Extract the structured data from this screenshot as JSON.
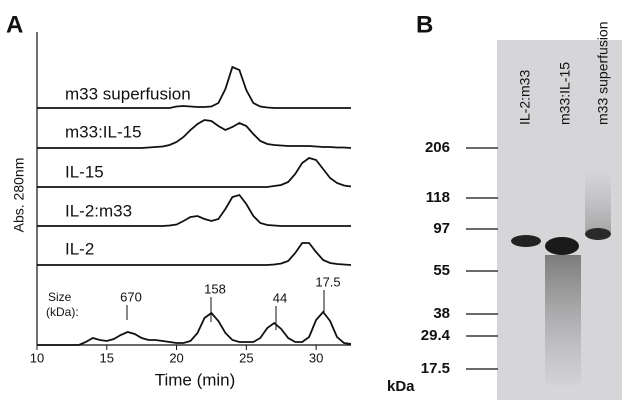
{
  "panels": {
    "a": "A",
    "b": "B"
  },
  "chart_data": {
    "type": "line",
    "x_label": "Time (min)",
    "y_label": "Abs. 280nm",
    "xlim": [
      10,
      32.5
    ],
    "xticks": [
      10,
      15,
      20,
      25,
      30
    ],
    "x": [
      10,
      10.5,
      11,
      11.5,
      12,
      12.5,
      13,
      13.5,
      14,
      14.5,
      15,
      15.5,
      16,
      16.5,
      17,
      17.5,
      18,
      18.5,
      19,
      19.5,
      20,
      20.5,
      21,
      21.5,
      22,
      22.5,
      23,
      23.5,
      24,
      24.5,
      25,
      25.5,
      26,
      26.5,
      27,
      27.5,
      28,
      28.5,
      29,
      29.5,
      30,
      30.5,
      31,
      31.5,
      32,
      32.5
    ],
    "series": [
      {
        "name": "m33 superfusion",
        "color": "#111111",
        "values": [
          0,
          0,
          0,
          0,
          0,
          0,
          0,
          0,
          0,
          0,
          0,
          0,
          0,
          0,
          0,
          0,
          0,
          0,
          0,
          0,
          1.5,
          2,
          1.5,
          1,
          1,
          1.5,
          5,
          19,
          41,
          38,
          18,
          5,
          1.5,
          0.5,
          0,
          0,
          0,
          0,
          0,
          0,
          0,
          0,
          0,
          0,
          0,
          0
        ]
      },
      {
        "name": "m33:IL-15",
        "color": "#111111",
        "values": [
          0,
          0,
          0,
          0,
          0,
          0,
          0,
          0,
          0,
          0,
          0,
          0,
          0,
          0,
          0,
          0,
          0.5,
          1,
          1.5,
          3,
          6,
          11,
          18,
          24,
          28,
          27,
          22,
          18,
          21,
          25,
          22,
          14,
          7,
          4,
          3,
          2.5,
          2,
          2,
          2,
          2,
          1.5,
          1,
          1,
          0.5,
          0.5,
          0
        ]
      },
      {
        "name": "IL-15",
        "color": "#111111",
        "values": [
          0,
          0,
          0,
          0,
          0,
          0,
          0,
          0,
          0,
          0,
          0,
          0,
          0,
          0,
          0,
          0,
          0,
          0,
          0,
          0,
          0,
          0,
          0,
          0,
          0,
          0,
          0,
          0,
          0,
          0,
          0,
          0,
          0,
          0,
          1,
          2,
          5,
          13,
          24,
          29,
          27,
          18,
          9,
          4,
          1.5,
          0.5
        ]
      },
      {
        "name": "IL-2:m33",
        "color": "#111111",
        "values": [
          0,
          0,
          0,
          0,
          0,
          0,
          0,
          0,
          0,
          0,
          0,
          0,
          0,
          0,
          0,
          0,
          0,
          0,
          0,
          0.5,
          1.5,
          5,
          9,
          10,
          7,
          5,
          7,
          17,
          29,
          31,
          22,
          10,
          3,
          1,
          0.5,
          0,
          0,
          0,
          0,
          0,
          0,
          0,
          0,
          0,
          0,
          0
        ]
      },
      {
        "name": "IL-2",
        "color": "#111111",
        "values": [
          0,
          0,
          0,
          0,
          0,
          0,
          0,
          0,
          0,
          0,
          0,
          0,
          0,
          0,
          0,
          0,
          0,
          0,
          0,
          0,
          0,
          0,
          0,
          0,
          0,
          0,
          0,
          0,
          0,
          0,
          0,
          0,
          0,
          0,
          0.5,
          1.5,
          4,
          12,
          22,
          22,
          13,
          5,
          2,
          1,
          0.5,
          0
        ]
      },
      {
        "color": "#111111",
        "values": [
          0,
          0,
          0,
          0,
          0,
          0,
          0,
          3,
          7,
          5,
          4,
          6,
          10,
          13,
          11,
          7,
          5,
          5,
          4,
          3,
          2,
          2,
          4,
          12,
          27,
          32,
          24,
          12,
          5,
          3,
          3,
          3,
          7,
          17,
          22,
          16,
          7,
          3,
          3,
          8,
          25,
          33,
          24,
          8,
          2,
          1
        ]
      }
    ],
    "size_label": [
      "Size",
      "(kDa):"
    ],
    "peak_labels": [
      "670",
      "158",
      "44",
      "17.5"
    ]
  },
  "gel": {
    "lanes": [
      "IL-2:m33",
      "m33:IL-15",
      "m33 superfusion"
    ],
    "markers": [
      "206",
      "118",
      "97",
      "55",
      "38",
      "29.4",
      "17.5"
    ],
    "unit": "kDa"
  }
}
